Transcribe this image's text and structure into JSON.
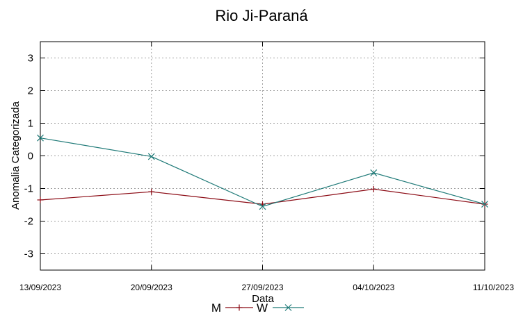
{
  "chart_data": {
    "type": "line",
    "title": "Rio Ji-Paraná",
    "xlabel": "Data",
    "ylabel": "Anomalia Categorizada",
    "categories": [
      "13/09/2023",
      "20/09/2023",
      "27/09/2023",
      "04/10/2023",
      "11/10/2023"
    ],
    "ylim": [
      -3.5,
      3.5
    ],
    "yticks": [
      3,
      2,
      1,
      0,
      -1,
      -2,
      -3
    ],
    "grid": true,
    "legend_position": "bottom-center",
    "series": [
      {
        "name": "M",
        "color": "#8b0a14",
        "marker": "plus",
        "values": [
          -1.35,
          -1.1,
          -1.48,
          -1.02,
          -1.48
        ]
      },
      {
        "name": "W",
        "color": "#1f7a78",
        "marker": "cross",
        "values": [
          0.55,
          -0.02,
          -1.55,
          -0.52,
          -1.48
        ]
      }
    ]
  }
}
